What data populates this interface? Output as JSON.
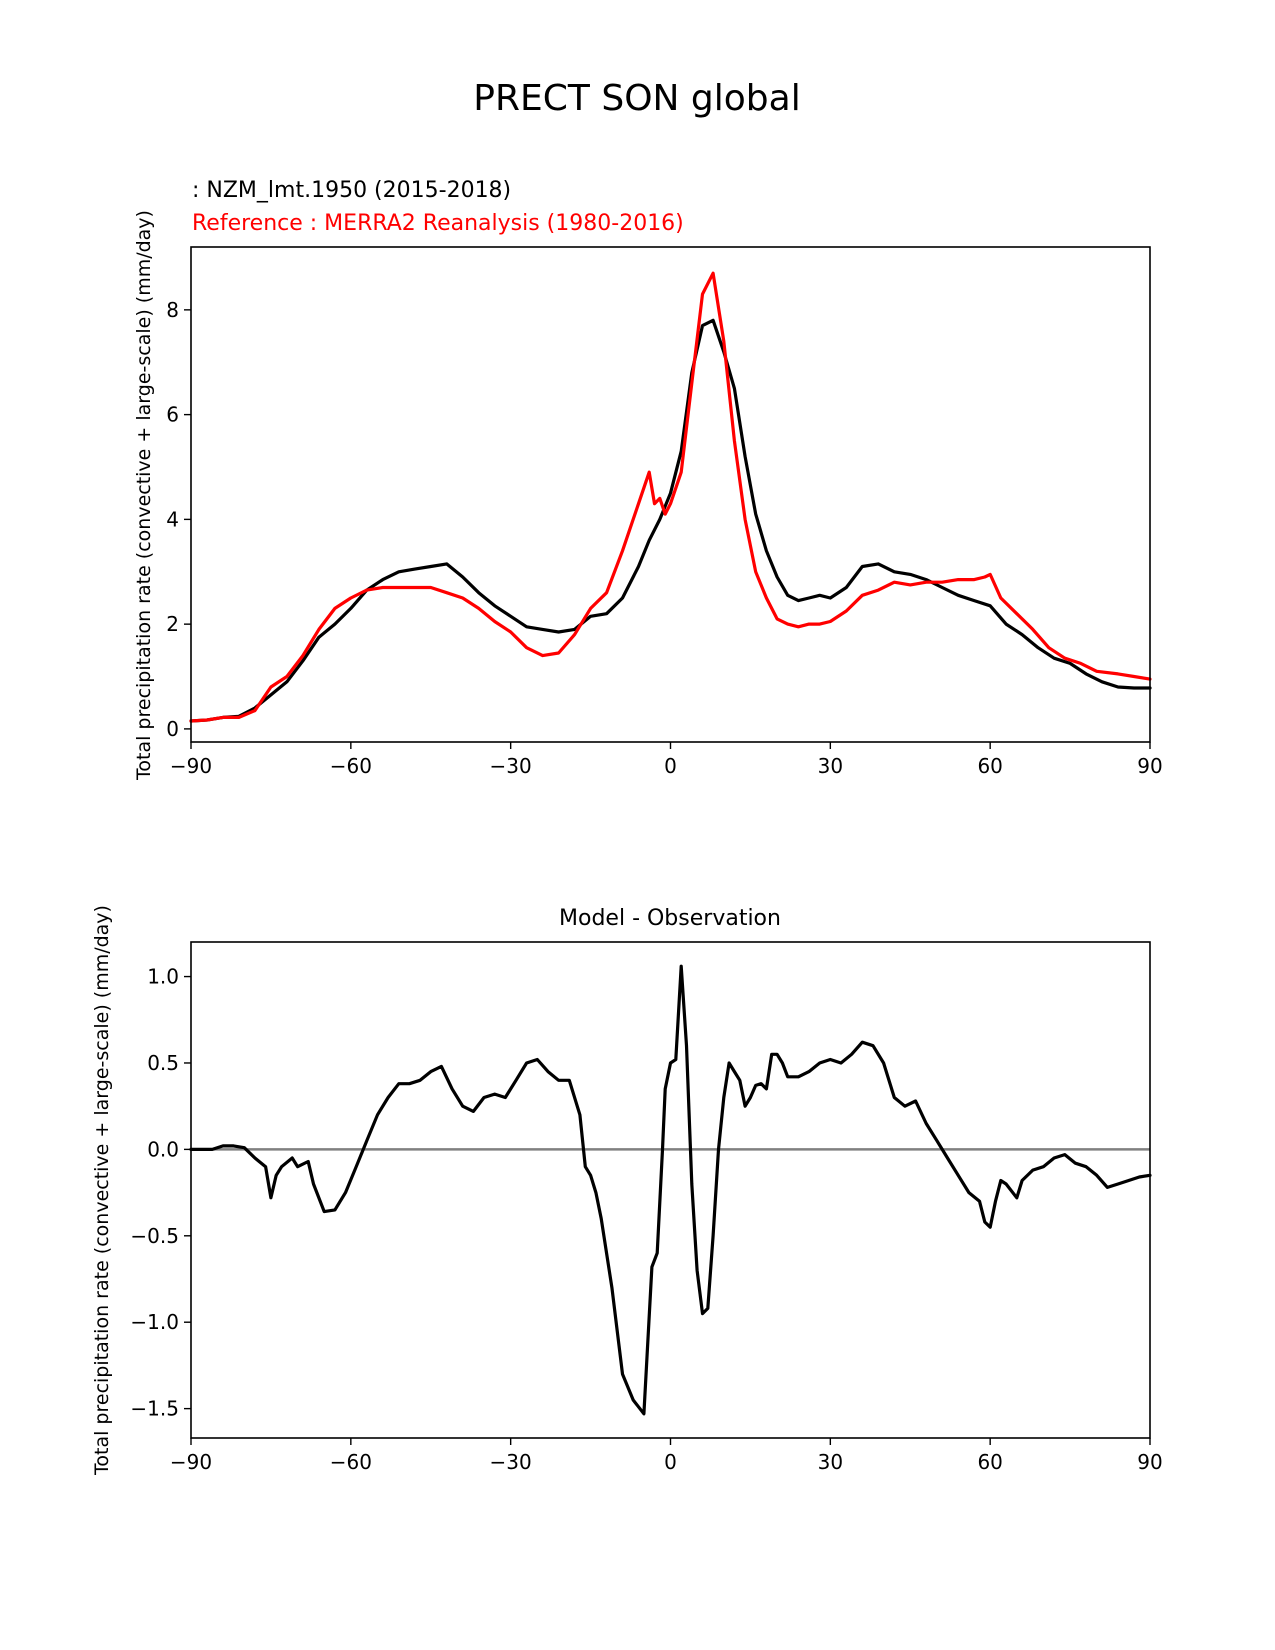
{
  "figure_title": "PRECT SON global",
  "chart_data": [
    {
      "type": "line",
      "panel": "top",
      "legend_test": ": NZM_lmt.1950 (2015-2018)",
      "legend_ref": "Reference : MERRA2 Reanalysis (1980-2016)",
      "ylabel": "Total precipitation rate (convective + large-scale) (mm/day)",
      "xlabel": "",
      "xlim": [
        -90,
        90
      ],
      "ylim": [
        -0.25,
        9.2
      ],
      "xticks": [
        -90,
        -60,
        -30,
        0,
        30,
        60,
        90
      ],
      "xtick_labels": [
        "−90",
        "−60",
        "−30",
        "0",
        "30",
        "60",
        "90"
      ],
      "yticks": [
        0,
        2,
        4,
        6,
        8
      ],
      "ytick_labels": [
        "0",
        "2",
        "4",
        "6",
        "8"
      ],
      "series": [
        {
          "name": "NZM_lmt.1950 (2015-2018)",
          "color": "#000000",
          "x": [
            -90,
            -87,
            -84,
            -81,
            -78,
            -75,
            -72,
            -69,
            -66,
            -63,
            -60,
            -57,
            -54,
            -51,
            -48,
            -45,
            -42,
            -39,
            -36,
            -33,
            -30,
            -27,
            -24,
            -21,
            -18,
            -15,
            -12,
            -9,
            -6,
            -4,
            -2,
            0,
            2,
            4,
            6,
            8,
            10,
            12,
            14,
            16,
            18,
            20,
            22,
            24,
            26,
            28,
            30,
            33,
            36,
            39,
            42,
            45,
            48,
            51,
            54,
            57,
            60,
            63,
            66,
            69,
            72,
            75,
            78,
            81,
            84,
            87,
            90
          ],
          "values": [
            0.15,
            0.17,
            0.22,
            0.24,
            0.4,
            0.65,
            0.9,
            1.3,
            1.75,
            2.0,
            2.3,
            2.65,
            2.85,
            3.0,
            3.05,
            3.1,
            3.15,
            2.9,
            2.6,
            2.35,
            2.15,
            1.95,
            1.9,
            1.85,
            1.9,
            2.15,
            2.2,
            2.5,
            3.1,
            3.6,
            4.0,
            4.5,
            5.3,
            6.8,
            7.7,
            7.8,
            7.2,
            6.5,
            5.2,
            4.1,
            3.4,
            2.9,
            2.55,
            2.45,
            2.5,
            2.55,
            2.5,
            2.7,
            3.1,
            3.15,
            3.0,
            2.95,
            2.85,
            2.7,
            2.55,
            2.45,
            2.35,
            2.0,
            1.8,
            1.55,
            1.35,
            1.25,
            1.05,
            0.9,
            0.8,
            0.78,
            0.78
          ]
        },
        {
          "name": "MERRA2 Reanalysis (1980-2016)",
          "color": "#ff0000",
          "x": [
            -90,
            -87,
            -84,
            -81,
            -78,
            -75,
            -72,
            -69,
            -66,
            -63,
            -60,
            -57,
            -54,
            -51,
            -48,
            -45,
            -42,
            -39,
            -36,
            -33,
            -30,
            -27,
            -24,
            -21,
            -18,
            -15,
            -12,
            -9,
            -6,
            -4,
            -3,
            -2,
            -1,
            0,
            2,
            4,
            6,
            8,
            10,
            12,
            14,
            16,
            18,
            20,
            22,
            24,
            26,
            28,
            30,
            33,
            36,
            39,
            42,
            45,
            48,
            51,
            54,
            57,
            59,
            60,
            62,
            65,
            68,
            71,
            74,
            77,
            80,
            84,
            87,
            90
          ],
          "values": [
            0.15,
            0.17,
            0.22,
            0.22,
            0.35,
            0.8,
            1.0,
            1.4,
            1.9,
            2.3,
            2.5,
            2.65,
            2.7,
            2.7,
            2.7,
            2.7,
            2.6,
            2.5,
            2.3,
            2.05,
            1.85,
            1.55,
            1.4,
            1.45,
            1.8,
            2.3,
            2.6,
            3.4,
            4.3,
            4.9,
            4.3,
            4.4,
            4.1,
            4.3,
            4.9,
            6.6,
            8.3,
            8.7,
            7.4,
            5.5,
            4.0,
            3.0,
            2.5,
            2.1,
            2.0,
            1.95,
            2.0,
            2.0,
            2.05,
            2.25,
            2.55,
            2.65,
            2.8,
            2.75,
            2.8,
            2.8,
            2.85,
            2.85,
            2.9,
            2.95,
            2.5,
            2.2,
            1.9,
            1.55,
            1.35,
            1.25,
            1.1,
            1.05,
            1.0,
            0.95
          ]
        }
      ]
    },
    {
      "type": "line",
      "panel": "bottom",
      "title": "Model - Observation",
      "ylabel": "Total precipitation rate (convective + large-scale) (mm/day)",
      "xlabel": "",
      "xlim": [
        -90,
        90
      ],
      "ylim": [
        -1.67,
        1.2
      ],
      "xticks": [
        -90,
        -60,
        -30,
        0,
        30,
        60,
        90
      ],
      "xtick_labels": [
        "−90",
        "−60",
        "−30",
        "0",
        "30",
        "60",
        "90"
      ],
      "yticks": [
        1.0,
        0.5,
        0.0,
        -0.5,
        -1.0,
        -1.5
      ],
      "ytick_labels": [
        "1.0",
        "0.5",
        "0.0",
        "−0.5",
        "−1.0",
        "−1.5"
      ],
      "zero_line_color": "#808080",
      "series": [
        {
          "name": "Model - Observation",
          "color": "#000000",
          "x": [
            -90,
            -88,
            -86,
            -84,
            -82,
            -80,
            -78,
            -76,
            -75,
            -74,
            -73,
            -71,
            -70,
            -68,
            -67,
            -65,
            -63,
            -61,
            -59,
            -57,
            -55,
            -53,
            -51,
            -49,
            -47,
            -45,
            -43,
            -41,
            -39,
            -37,
            -35,
            -33,
            -31,
            -29,
            -27,
            -25,
            -23,
            -21,
            -19,
            -17,
            -16,
            -15,
            -14,
            -13,
            -11,
            -9,
            -7,
            -5,
            -3.5,
            -2.5,
            -1.5,
            -1,
            0,
            1,
            2,
            3,
            4,
            5,
            6,
            7,
            8,
            9,
            10,
            11,
            12,
            13,
            14,
            15,
            16,
            17,
            18,
            19,
            20,
            21,
            22,
            24,
            26,
            28,
            30,
            32,
            34,
            36,
            38,
            40,
            42,
            44,
            46,
            48,
            50,
            52,
            54,
            56,
            58,
            59,
            60,
            61,
            62,
            63,
            65,
            66,
            68,
            70,
            72,
            74,
            76,
            78,
            80,
            82,
            84,
            86,
            88,
            90
          ],
          "values": [
            0.0,
            0.0,
            0.0,
            0.02,
            0.02,
            0.01,
            -0.05,
            -0.1,
            -0.28,
            -0.15,
            -0.1,
            -0.05,
            -0.1,
            -0.07,
            -0.2,
            -0.36,
            -0.35,
            -0.25,
            -0.1,
            0.05,
            0.2,
            0.3,
            0.38,
            0.38,
            0.4,
            0.45,
            0.48,
            0.35,
            0.25,
            0.22,
            0.3,
            0.32,
            0.3,
            0.4,
            0.5,
            0.52,
            0.45,
            0.4,
            0.4,
            0.2,
            -0.1,
            -0.15,
            -0.25,
            -0.4,
            -0.8,
            -1.3,
            -1.45,
            -1.53,
            -0.68,
            -0.6,
            0.0,
            0.35,
            0.5,
            0.52,
            1.06,
            0.6,
            -0.2,
            -0.7,
            -0.95,
            -0.92,
            -0.5,
            0.0,
            0.3,
            0.5,
            0.45,
            0.4,
            0.25,
            0.3,
            0.37,
            0.38,
            0.35,
            0.55,
            0.55,
            0.5,
            0.42,
            0.42,
            0.45,
            0.5,
            0.52,
            0.5,
            0.55,
            0.62,
            0.6,
            0.5,
            0.3,
            0.25,
            0.28,
            0.15,
            0.05,
            -0.05,
            -0.15,
            -0.25,
            -0.3,
            -0.42,
            -0.45,
            -0.3,
            -0.18,
            -0.2,
            -0.28,
            -0.18,
            -0.12,
            -0.1,
            -0.05,
            -0.03,
            -0.08,
            -0.1,
            -0.15,
            -0.22,
            -0.2,
            -0.18,
            -0.16,
            -0.15
          ]
        }
      ]
    }
  ]
}
